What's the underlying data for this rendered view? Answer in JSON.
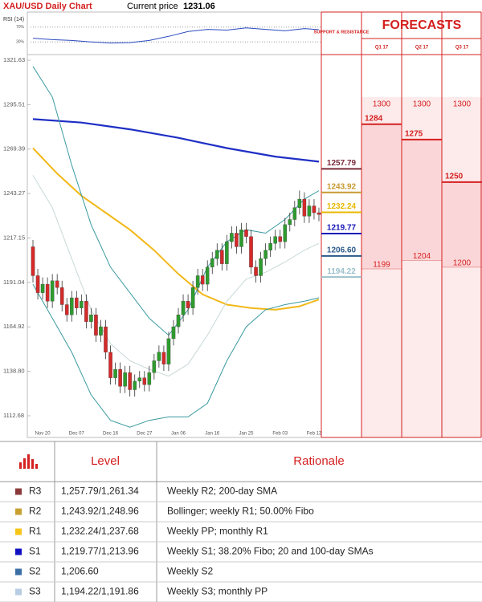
{
  "chart_data": {
    "type": "candlestick",
    "title": "XAU/USD Daily Chart",
    "current_price_label": "Current price",
    "current_price": 1231.06,
    "ylim": [
      1104.66,
      1321.63
    ],
    "yticks": [
      1321.63,
      1295.51,
      1269.39,
      1243.27,
      1217.15,
      1191.04,
      1164.92,
      {
        "value": 1138.8,
        "label": "1138.80"
      },
      1112.68
    ],
    "categories": [
      null,
      null,
      "Nov 20",
      null,
      null,
      null,
      null,
      null,
      null,
      "Dec 07",
      null,
      null,
      null,
      null,
      null,
      null,
      "Dec 16",
      null,
      null,
      null,
      null,
      null,
      null,
      "Dec 27",
      null,
      null,
      null,
      null,
      null,
      null,
      "Jan 06",
      null,
      null,
      null,
      null,
      null,
      null,
      "Jan 16",
      null,
      null,
      null,
      null,
      null,
      null,
      "Jan 25",
      null,
      null,
      null,
      null,
      null,
      null,
      "Feb 03",
      null,
      null,
      null,
      null,
      null,
      null,
      "Feb 13",
      null
    ],
    "open": [
      1212,
      1195,
      1185,
      1190,
      1180,
      1192,
      1188,
      1178,
      1172,
      1182,
      1176,
      1180,
      1168,
      1172,
      1160,
      1165,
      1150,
      1135,
      1140,
      1130,
      1138,
      1128,
      1133,
      1135,
      1131,
      1138,
      1145,
      1150,
      1143,
      1158,
      1165,
      1172,
      1180,
      1176,
      1188,
      1195,
      1190,
      1200,
      1205,
      1210,
      1202,
      1215,
      1220,
      1212,
      1222,
      1218,
      1200,
      1195,
      1205,
      1210,
      1214,
      1218,
      1215,
      1225,
      1228,
      1235,
      1240,
      1230,
      1236,
      1232
    ],
    "high": [
      1216,
      1199,
      1194,
      1194,
      1196,
      1196,
      1192,
      1182,
      1186,
      1186,
      1184,
      1184,
      1176,
      1176,
      1169,
      1169,
      1154,
      1144,
      1144,
      1142,
      1142,
      1137,
      1139,
      1139,
      1142,
      1149,
      1154,
      1154,
      1162,
      1169,
      1176,
      1184,
      1184,
      1192,
      1199,
      1199,
      1204,
      1209,
      1214,
      1214,
      1219,
      1224,
      1224,
      1226,
      1226,
      1222,
      1204,
      1209,
      1214,
      1218,
      1222,
      1222,
      1229,
      1232,
      1239,
      1245,
      1244,
      1240,
      1240,
      1235
    ],
    "low": [
      1191,
      1181,
      1181,
      1176,
      1176,
      1184,
      1174,
      1168,
      1168,
      1172,
      1172,
      1164,
      1164,
      1156,
      1156,
      1146,
      1131,
      1131,
      1126,
      1126,
      1124,
      1124,
      1129,
      1127,
      1127,
      1134,
      1141,
      1139,
      1139,
      1154,
      1161,
      1168,
      1172,
      1172,
      1184,
      1186,
      1186,
      1196,
      1201,
      1198,
      1198,
      1211,
      1208,
      1208,
      1214,
      1196,
      1191,
      1191,
      1201,
      1206,
      1210,
      1211,
      1211,
      1221,
      1224,
      1231,
      1226,
      1226,
      1228,
      1227
    ],
    "close": [
      1195,
      1185,
      1190,
      1180,
      1192,
      1188,
      1178,
      1172,
      1182,
      1176,
      1180,
      1168,
      1172,
      1160,
      1165,
      1150,
      1135,
      1140,
      1130,
      1138,
      1128,
      1133,
      1135,
      1131,
      1138,
      1145,
      1150,
      1143,
      1158,
      1165,
      1172,
      1180,
      1176,
      1188,
      1195,
      1190,
      1200,
      1205,
      1210,
      1202,
      1215,
      1220,
      1212,
      1222,
      1218,
      1200,
      1195,
      1205,
      1210,
      1214,
      1218,
      1215,
      1225,
      1228,
      1235,
      1240,
      1230,
      1236,
      1232,
      1231
    ],
    "up_color": "#2e9b2e",
    "down_color": "#d42a2a",
    "lines": [
      {
        "color": "#1f2fc4",
        "width": 2.2,
        "x": [
          0,
          10,
          20,
          30,
          40,
          50,
          59
        ],
        "values": [
          1287,
          1285,
          1281,
          1276,
          1270,
          1265,
          1262
        ]
      },
      {
        "color": "#f2b818",
        "width": 2,
        "x": [
          0,
          5,
          10,
          15,
          20,
          25,
          30,
          35,
          40,
          45,
          50,
          55,
          59
        ],
        "values": [
          1270,
          1255,
          1242,
          1232,
          1222,
          1210,
          1196,
          1184,
          1178,
          1176,
          1175,
          1177,
          1181
        ]
      },
      {
        "color": "#3a9aa0",
        "width": 1,
        "x": [
          0,
          4,
          8,
          12,
          16,
          20,
          24,
          28,
          32,
          36,
          40,
          44,
          48,
          52,
          56,
          59
        ],
        "values": [
          1318,
          1300,
          1260,
          1225,
          1200,
          1185,
          1170,
          1160,
          1175,
          1200,
          1215,
          1222,
          1220,
          1228,
          1240,
          1245
        ]
      },
      {
        "color": "#3a9aa0",
        "width": 1,
        "x": [
          0,
          4,
          8,
          12,
          16,
          20,
          24,
          28,
          32,
          36,
          40,
          44,
          48,
          52,
          56,
          59
        ],
        "values": [
          1190,
          1170,
          1150,
          1125,
          1110,
          1106,
          1110,
          1112,
          1112,
          1120,
          1145,
          1165,
          1175,
          1178,
          1180,
          1182
        ]
      },
      {
        "color": "#c8d8d8",
        "width": 1,
        "x": [
          0,
          4,
          8,
          12,
          16,
          20,
          24,
          28,
          32,
          36,
          40,
          44,
          48,
          52,
          56,
          59
        ],
        "values": [
          1254,
          1235,
          1205,
          1175,
          1155,
          1145,
          1140,
          1136,
          1143,
          1160,
          1180,
          1193,
          1197,
          1203,
          1210,
          1214
        ]
      }
    ],
    "levels": {
      "values": [
        1257.79,
        1243.92,
        1232.24,
        1219.77,
        1206.6,
        1194.22
      ],
      "value_labels": [
        "1257.79",
        "1243.92",
        "1232.24",
        "1219.77",
        "1206.60",
        "1194.22"
      ],
      "colors": [
        "#7a2a3a",
        "#c89a30",
        "#e8b800",
        "#1414b8",
        "#2a5a8a",
        "#9cc0cc"
      ]
    },
    "rsi": {
      "title": "RSI (14)",
      "ylim": [
        0,
        100
      ],
      "yticks": [
        {
          "value": 70,
          "label": "70%"
        },
        {
          "value": 30,
          "label": "30%"
        }
      ],
      "color": "#2a4ac0",
      "x": [
        0,
        4,
        8,
        12,
        16,
        20,
        24,
        28,
        32,
        36,
        40,
        44,
        48,
        52,
        56,
        59
      ],
      "values": [
        40,
        36,
        34,
        30,
        27,
        28,
        34,
        45,
        58,
        64,
        62,
        68,
        64,
        60,
        66,
        63
      ]
    }
  },
  "forecasts": {
    "title": "FORECASTS",
    "support_title": "SUPPORT & RESISTANCE",
    "quarters": [
      {
        "label": "Q1 17",
        "high": 1300,
        "mid": 1284,
        "low": 1199
      },
      {
        "label": "Q2 17",
        "high": 1300,
        "mid": 1275,
        "low": 1204
      },
      {
        "label": "Q3 17",
        "high": 1300,
        "mid": 1250,
        "low": 1200
      }
    ]
  },
  "table": {
    "header": [
      "Level",
      "Rationale"
    ],
    "rows": [
      {
        "color": "#8b3a3a",
        "name": "R3",
        "level": "1,257.79/1,261.34",
        "rationale": "Weekly R2; 200-day SMA"
      },
      {
        "color": "#c8a030",
        "name": "R2",
        "level": "1,243.92/1,248.96",
        "rationale": "Bollinger; weekly R1; 50.00% Fibo"
      },
      {
        "color": "#f5c518",
        "name": "R1",
        "level": "1,232.24/1,237.68",
        "rationale": "Weekly PP; monthly R1"
      },
      {
        "color": "#1010c0",
        "name": "S1",
        "level": "1,219.77/1,213.96",
        "rationale": "Weekly S1; 38.20% Fibo; 20 and 100-day SMAs"
      },
      {
        "color": "#3a6ea5",
        "name": "S2",
        "level": "1,206.60",
        "rationale": "Weekly S2"
      },
      {
        "color": "#b8cce4",
        "name": "S3",
        "level": "1,194.22/1,191.86",
        "rationale": "Weekly S3; monthly PP"
      }
    ]
  }
}
